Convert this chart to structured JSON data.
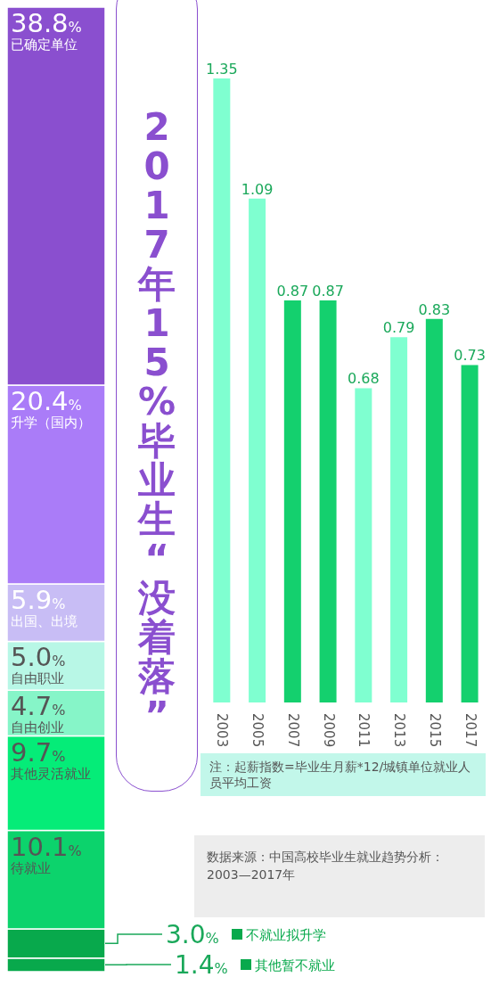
{
  "chart_data": [
    {
      "type": "bar",
      "stacked": true,
      "categories": [
        null
      ],
      "legend": "bottom right",
      "series": [
        {
          "name": "其他暂不就业",
          "color": "#08a94c",
          "values": [
            1.4
          ],
          "value_labels": [
            "1.4%"
          ]
        },
        {
          "name": "不就业拟升学",
          "color": "#08a94c",
          "values": [
            3.0
          ],
          "value_labels": [
            "3.0%"
          ]
        },
        {
          "name": "待就业",
          "color": "#0cd36c",
          "values": [
            10.1
          ],
          "value_labels": [
            "10.1%"
          ]
        },
        {
          "name": "其他灵活就业",
          "color": "#05ec78",
          "values": [
            9.7
          ],
          "value_labels": [
            "9.7%"
          ]
        },
        {
          "name": "自由创业",
          "color": "#86f5c8",
          "values": [
            4.7
          ],
          "value_labels": [
            "4.7%"
          ]
        },
        {
          "name": "自由职业",
          "color": "#b8f7e6",
          "values": [
            5.0
          ],
          "value_labels": [
            "5.0%"
          ]
        },
        {
          "name": "出国、出境",
          "color": "#c8bdf5",
          "values": [
            5.9
          ],
          "value_labels": [
            "5.9%"
          ]
        },
        {
          "name": "升学（国内）",
          "color": "#aa7cf8",
          "values": [
            20.4
          ],
          "value_labels": [
            "20.4%"
          ]
        },
        {
          "name": "已确定单位",
          "color": "#8a4fcf",
          "values": [
            38.8
          ],
          "value_labels": [
            "38.8%"
          ]
        }
      ]
    },
    {
      "type": "bar",
      "title": "2017年15%毕业生“没着落”",
      "data_labels": true,
      "categories": [
        "2003",
        "2005",
        "2007",
        "2009",
        "2011",
        "2013",
        "2015",
        "2017"
      ],
      "values": [
        1.35,
        1.09,
        0.87,
        0.87,
        0.68,
        0.79,
        0.83,
        0.73
      ],
      "colors": [
        "#7fffd0",
        "#7fffd0",
        "#14d06e",
        "#14d06e",
        "#7fffd0",
        "#7fffd0",
        "#14d06e",
        "#14d06e"
      ],
      "annotations": [
        "注：起薪指数=毕业生月薪*12/城镇单位就业人员平均工资",
        "数据来源：中国高校毕业生就业趋势分析：2003—2017年"
      ]
    }
  ]
}
